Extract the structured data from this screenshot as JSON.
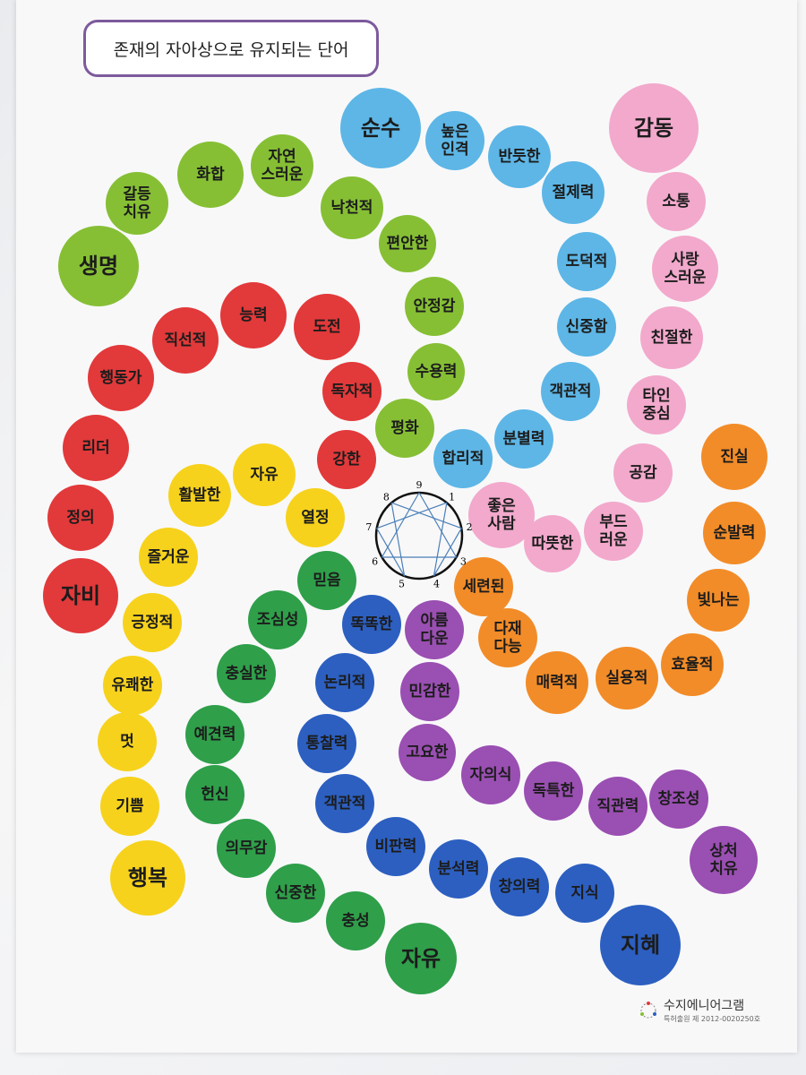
{
  "title": "존재의 자아상으로 유지되는 단어",
  "groups": [
    {
      "color": "#86bf34",
      "words": [
        "갈등\n치유",
        "화합",
        "자연\n스러운",
        "낙천적",
        "편안한",
        "안정감",
        "수용력",
        "평화",
        "생명"
      ]
    },
    {
      "color": "#5db6e6",
      "words": [
        "순수",
        "높은\n인격",
        "반듯한",
        "절제력",
        "도덕적",
        "신중함",
        "객관적",
        "분별력",
        "합리적"
      ]
    },
    {
      "color": "#f2a9cc",
      "words": [
        "감동",
        "소통",
        "사랑\n스러운",
        "친절한",
        "타인\n중심",
        "공감",
        "좋은\n사람",
        "따뜻한",
        "부드\n러운"
      ]
    },
    {
      "color": "#f28c28",
      "words": [
        "진실",
        "순발력",
        "빛나는",
        "효율적",
        "실용적",
        "매력적",
        "다재\n다능",
        "세련된"
      ]
    },
    {
      "color": "#e2393a",
      "words": [
        "능력",
        "도전",
        "직선적",
        "독자적",
        "행동가",
        "리더",
        "강한",
        "정의",
        "자비"
      ]
    },
    {
      "color": "#f6d21c",
      "words": [
        "자유",
        "활발한",
        "열정",
        "즐거운",
        "긍정적",
        "유쾌한",
        "멋",
        "기쁨",
        "행복"
      ]
    },
    {
      "color": "#2f9f4a",
      "words": [
        "믿음",
        "조심성",
        "충실한",
        "예견력",
        "헌신",
        "의무감",
        "신중한",
        "충성",
        "자유"
      ]
    },
    {
      "color": "#2c5fc0",
      "words": [
        "똑똑한",
        "논리적",
        "통찰력",
        "객관적",
        "비판력",
        "분석력",
        "창의력",
        "지식",
        "지혜"
      ]
    },
    {
      "color": "#9a4fb2",
      "words": [
        "아름\n다운",
        "민감한",
        "고요한",
        "자의식",
        "독특한",
        "직관력",
        "창조성",
        "상처\n치유"
      ]
    }
  ],
  "enneagram": {
    "numbers": [
      "9",
      "1",
      "2",
      "3",
      "4",
      "5",
      "6",
      "7",
      "8"
    ]
  },
  "footer": {
    "brand": "수지에니어그램",
    "patent": "특허출원 제 2012-0020250호"
  }
}
